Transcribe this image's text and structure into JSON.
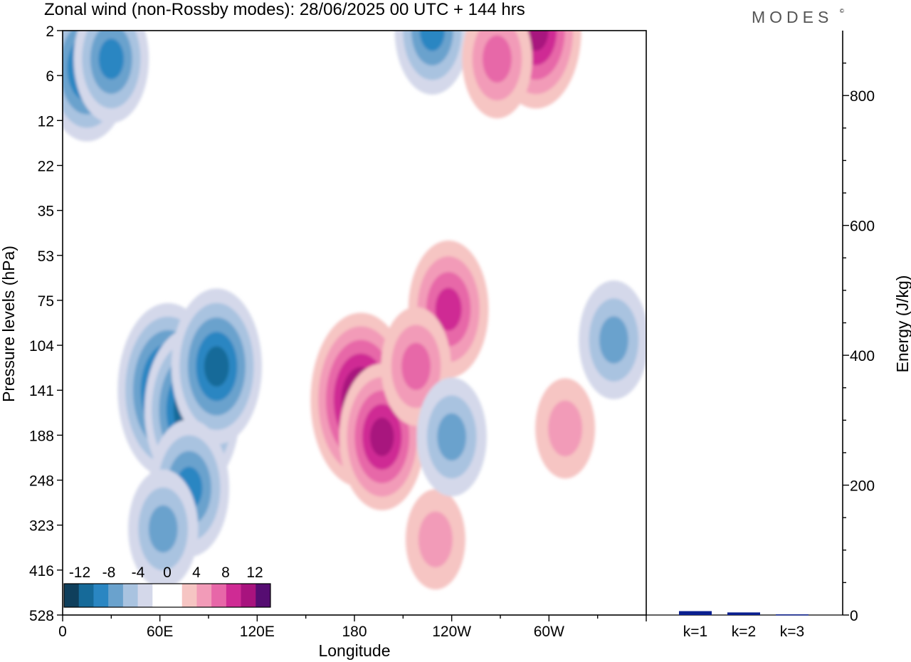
{
  "header": {
    "title": "Zonal wind (non-Rossby modes):  28/06/2025  00 UTC  + 144 hrs",
    "brand": "MODES",
    "brand_mark": "©"
  },
  "colors": {
    "neg": [
      "#0f3f5c",
      "#166a99",
      "#2a86c2",
      "#6aa2cd",
      "#a9c3e0",
      "#d4d8ea"
    ],
    "zero": "#ffffff",
    "pos": [
      "#f6c5c3",
      "#f29bb8",
      "#e767a8",
      "#cf2b94",
      "#a8137e",
      "#560d72"
    ],
    "bar": "#0a1f8f"
  },
  "chart_data": [
    {
      "type": "heatmap",
      "title": "Zonal wind (non-Rossby modes):  28/06/2025  00 UTC  + 144 hrs",
      "xlabel": "Longitude",
      "ylabel": "Pressure levels (hPa)",
      "x_ticks": [
        "0",
        "60E",
        "120E",
        "180",
        "120W",
        "60W"
      ],
      "y_ticks": [
        "2",
        "6",
        "12",
        "22",
        "35",
        "53",
        "75",
        "104",
        "141",
        "188",
        "248",
        "323",
        "416",
        "528"
      ],
      "colorbar": {
        "tick_labels": [
          "-12",
          "-8",
          "-4",
          "0",
          "4",
          "8",
          "12"
        ],
        "levels": [
          -14,
          -12,
          -10,
          -8,
          -6,
          -4,
          -2,
          2,
          4,
          6,
          8,
          10,
          12,
          14
        ]
      },
      "features": [
        {
          "lon": 65,
          "level": 141,
          "value": -13
        },
        {
          "lon": 80,
          "level": 160,
          "value": -12
        },
        {
          "lon": 95,
          "level": 120,
          "value": -11
        },
        {
          "lon": 78,
          "level": 260,
          "value": -9
        },
        {
          "lon": 62,
          "level": 330,
          "value": -7
        },
        {
          "lon": 15,
          "level": 5,
          "value": -10
        },
        {
          "lon": 30,
          "level": 4,
          "value": -8
        },
        {
          "lon": 228,
          "level": 2,
          "value": -8
        },
        {
          "lon": 184,
          "level": 150,
          "value": 13
        },
        {
          "lon": 197,
          "level": 190,
          "value": 10
        },
        {
          "lon": 238,
          "level": 80,
          "value": 9
        },
        {
          "lon": 218,
          "level": 120,
          "value": 7
        },
        {
          "lon": 292,
          "level": 2,
          "value": 11
        },
        {
          "lon": 268,
          "level": 4,
          "value": 7
        },
        {
          "lon": 230,
          "level": 350,
          "value": 5
        },
        {
          "lon": 240,
          "level": 190,
          "value": -7
        },
        {
          "lon": 340,
          "level": 100,
          "value": -7
        },
        {
          "lon": 310,
          "level": 180,
          "value": 5
        }
      ]
    },
    {
      "type": "bar",
      "categories": [
        "k=1",
        "k=2",
        "k=3"
      ],
      "values": [
        6,
        4,
        1
      ],
      "ylabel": "Energy (J/kg)",
      "y_ticks": [
        "0",
        "200",
        "400",
        "600",
        "800"
      ],
      "ylim": [
        0,
        900
      ]
    }
  ]
}
